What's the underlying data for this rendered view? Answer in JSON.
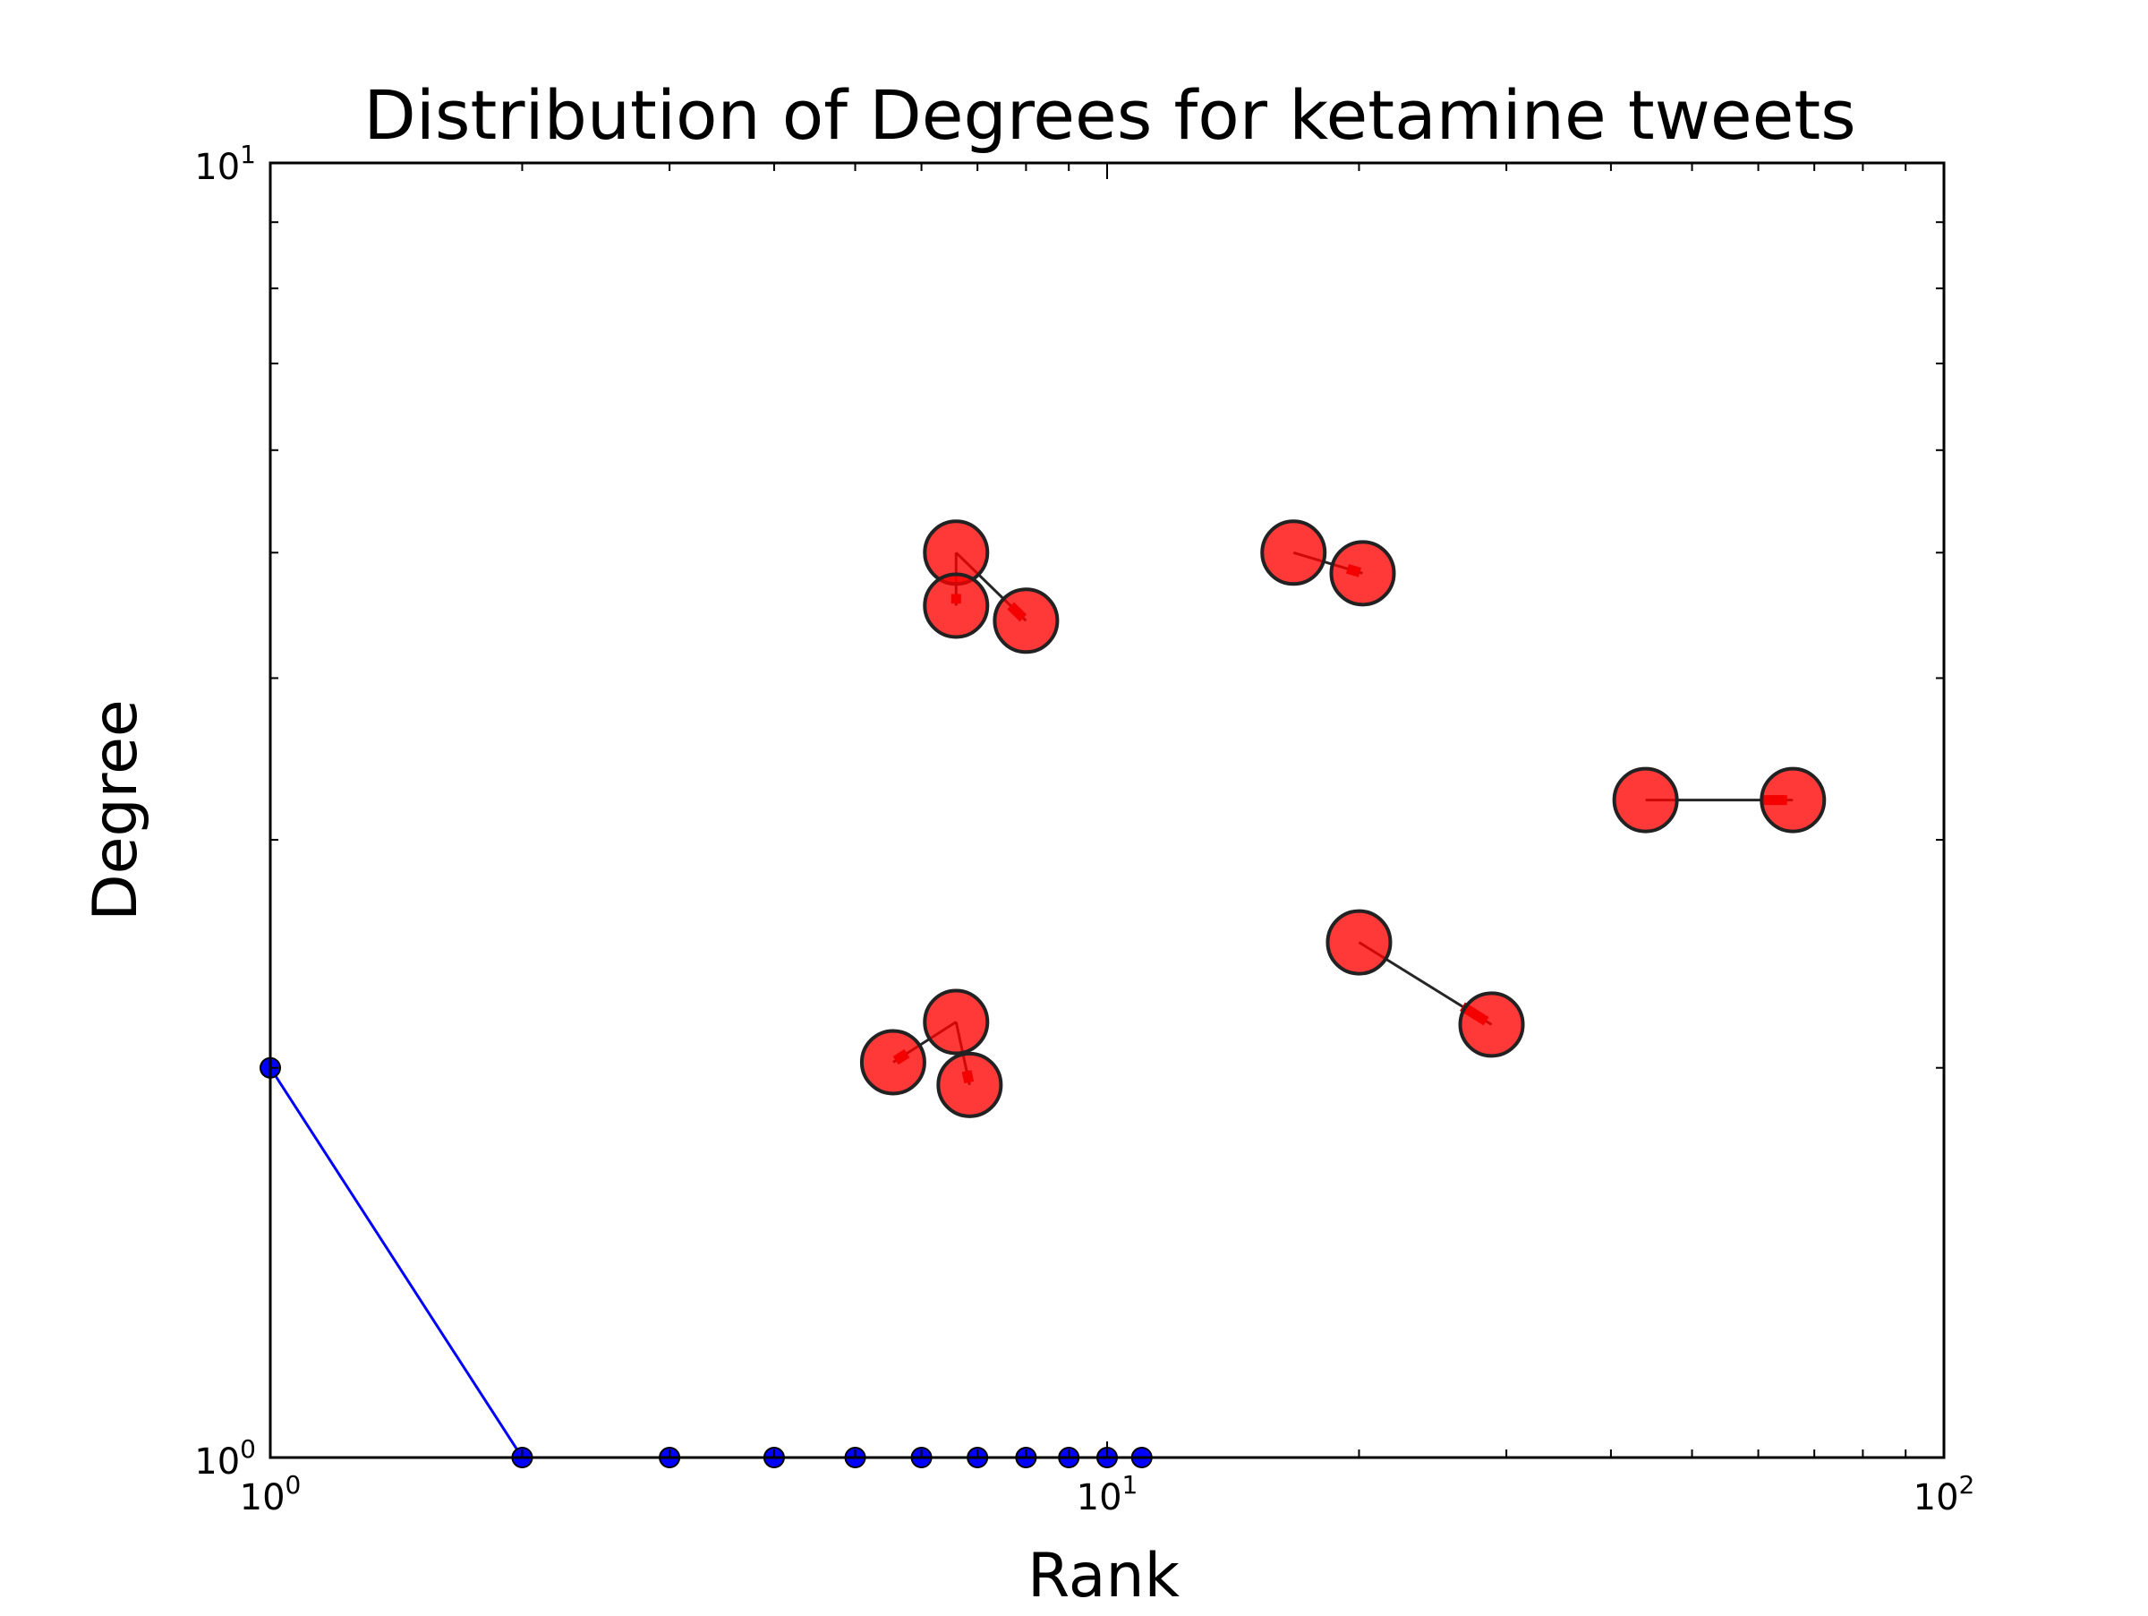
{
  "chart_data": {
    "type": "line",
    "title": "Distribution of Degrees for ketamine tweets",
    "xlabel": "Rank",
    "ylabel": "Degree",
    "xscale": "log",
    "yscale": "log",
    "xlim": [
      1,
      100
    ],
    "ylim": [
      1,
      10
    ],
    "grid": false,
    "x_ticks": [
      {
        "base": "10",
        "exp": "0",
        "value": 1
      },
      {
        "base": "10",
        "exp": "1",
        "value": 10
      },
      {
        "base": "10",
        "exp": "2",
        "value": 100
      }
    ],
    "y_ticks": [
      {
        "base": "10",
        "exp": "0",
        "value": 1
      },
      {
        "base": "10",
        "exp": "1",
        "value": 10
      }
    ],
    "series": [
      {
        "color": "#0000ff",
        "marker": "circle",
        "x": [
          1,
          2,
          3,
          4,
          5,
          6,
          7,
          8,
          9,
          10,
          11
        ],
        "y": [
          2,
          1,
          1,
          1,
          1,
          1,
          1,
          1,
          1,
          1,
          1
        ]
      }
    ],
    "network_overlay": {
      "node_color": "#ff0000",
      "edge_color": "#000000",
      "nodes": [
        {
          "x": 6.6,
          "y": 5.0
        },
        {
          "x": 6.6,
          "y": 4.55
        },
        {
          "x": 8.0,
          "y": 4.43
        },
        {
          "x": 16.7,
          "y": 5.0
        },
        {
          "x": 20.2,
          "y": 4.82
        },
        {
          "x": 44.0,
          "y": 3.22
        },
        {
          "x": 66.0,
          "y": 3.22
        },
        {
          "x": 20.0,
          "y": 2.5
        },
        {
          "x": 28.8,
          "y": 2.16
        },
        {
          "x": 6.6,
          "y": 2.17
        },
        {
          "x": 5.55,
          "y": 2.02
        },
        {
          "x": 6.85,
          "y": 1.94
        }
      ],
      "edges": [
        [
          0,
          1
        ],
        [
          0,
          2
        ],
        [
          3,
          4
        ],
        [
          5,
          6
        ],
        [
          7,
          8
        ],
        [
          9,
          10
        ],
        [
          9,
          11
        ]
      ]
    }
  }
}
